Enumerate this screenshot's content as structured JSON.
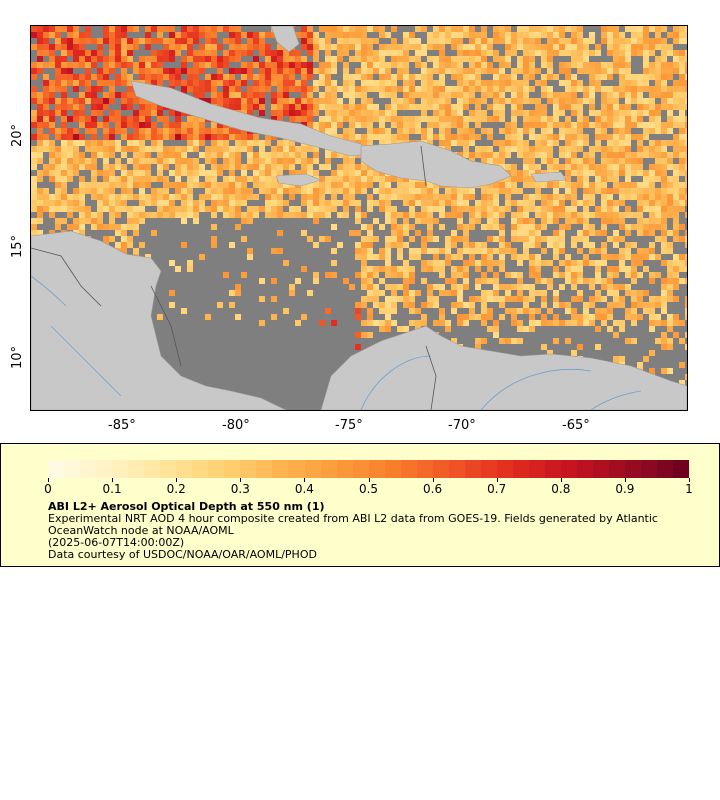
{
  "map": {
    "lon_ticks": [
      "-85°",
      "-80°",
      "-75°",
      "-70°",
      "-65°"
    ],
    "lat_ticks": [
      "20°",
      "15°",
      "10°"
    ],
    "colors": {
      "land": "#c8c8c8",
      "no_data": "#7f7f7f",
      "rivers": "#6fa0d0",
      "borders": "#555555"
    }
  },
  "legend": {
    "tick_labels": [
      "0",
      "0.1",
      "0.2",
      "0.3",
      "0.4",
      "0.5",
      "0.6",
      "0.7",
      "0.8",
      "0.9",
      "1"
    ],
    "colormap": [
      "#fffce6",
      "#fff3c6",
      "#ffe69c",
      "#ffd273",
      "#fdb450",
      "#fc9a3a",
      "#f97b2b",
      "#f05126",
      "#e02a1e",
      "#c41221",
      "#980b22",
      "#6a0020"
    ],
    "title": "ABI L2+ Aerosol Optical Depth at 550 nm (1)",
    "description_line1": "Experimental NRT AOD 4 hour composite created from ABI L2 data from GOES-19. Fields generated by Atlantic",
    "description_line2": "OceanWatch node at NOAA/AOML",
    "timestamp": "(2025-06-07T14:00:00Z)",
    "credit": "Data courtesy of USDOC/NOAA/OAR/AOML/PHOD"
  }
}
